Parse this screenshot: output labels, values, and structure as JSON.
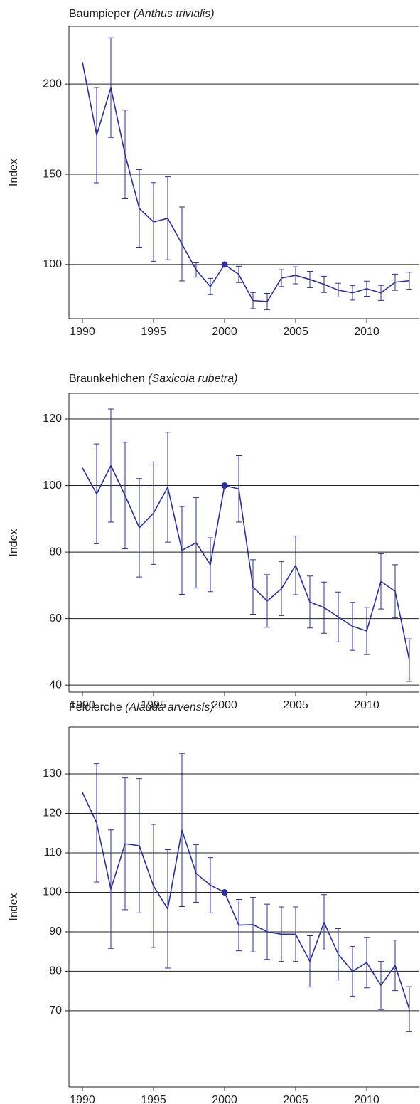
{
  "chart_data": [
    {
      "type": "line",
      "title": "Baumpieper",
      "subtitle": "(Anthus trivialis)",
      "y_label": "Index",
      "color": "#2e3192",
      "highlight": 2000,
      "grid": true,
      "x": [
        1990,
        1991,
        1992,
        1993,
        1994,
        1995,
        1996,
        1997,
        1998,
        1999,
        2000,
        2001,
        2002,
        2003,
        2004,
        2005,
        2006,
        2007,
        2008,
        2009,
        2010,
        2011,
        2012,
        2013
      ],
      "values": [
        212.2,
        171.7,
        198,
        161,
        131.1,
        123.6,
        125.6,
        111.4,
        97,
        87.8,
        100,
        94.5,
        80,
        79.5,
        92.5,
        94,
        91.7,
        89,
        85.8,
        84.3,
        86.6,
        84.3,
        90.2,
        91
      ],
      "errors": [
        null,
        26.4,
        27.6,
        24.6,
        21.5,
        21.8,
        23,
        20.5,
        4,
        4.5,
        null,
        4.5,
        4.5,
        4.5,
        4.7,
        4.7,
        4.5,
        4.5,
        3.8,
        4,
        4.2,
        4.2,
        4.5,
        4.7
      ],
      "xlim": [
        1989.05,
        2013.7
      ],
      "xticks": [
        1990,
        1995,
        2000,
        2005,
        2010
      ],
      "ylim": [
        70,
        232
      ],
      "yticks": [
        100,
        150,
        200
      ]
    },
    {
      "type": "line",
      "title": "Braunkehlchen",
      "subtitle": "(Saxicola rubetra)",
      "y_label": "Index",
      "color": "#2e3192",
      "highlight": 2000,
      "grid": true,
      "x": [
        1990,
        1991,
        1992,
        1993,
        1994,
        1995,
        1996,
        1997,
        1998,
        1999,
        2000,
        2001,
        2002,
        2003,
        2004,
        2005,
        2006,
        2007,
        2008,
        2009,
        2010,
        2011,
        2012,
        2013
      ],
      "values": [
        105.3,
        97.5,
        106,
        97,
        87.3,
        91.7,
        99.5,
        80.5,
        82.8,
        76.2,
        100,
        99,
        69.5,
        65.3,
        69,
        76,
        65,
        63.3,
        60.5,
        57.7,
        56.3,
        71.2,
        68.2,
        47.5
      ],
      "errors": [
        null,
        15,
        17,
        16,
        14.8,
        15.4,
        16.5,
        13.2,
        13.6,
        8.1,
        null,
        10,
        8.2,
        7.9,
        8.1,
        8.8,
        7.8,
        7.7,
        7.5,
        7.2,
        7.1,
        8.3,
        8,
        6.4
      ],
      "xlim": [
        1989.05,
        2013.7
      ],
      "xticks": [
        1990,
        1995,
        2000,
        2005,
        2010
      ],
      "ylim": [
        37.9,
        127.7
      ],
      "yticks": [
        40,
        60,
        80,
        100,
        120
      ]
    },
    {
      "type": "line",
      "title": "Feldlerche",
      "subtitle": "(Alauda arvensis)",
      "y_label": "Index",
      "color": "#2e3192",
      "highlight": 2000,
      "grid": true,
      "x": [
        1990,
        1991,
        1992,
        1993,
        1994,
        1995,
        1996,
        1997,
        1998,
        1999,
        2000,
        2001,
        2002,
        2003,
        2004,
        2005,
        2006,
        2007,
        2008,
        2009,
        2010,
        2011,
        2012,
        2013
      ],
      "values": [
        125.3,
        117.6,
        100.8,
        112.3,
        111.8,
        101.6,
        95.8,
        115.8,
        104.8,
        101.8,
        100,
        91.7,
        91.8,
        90,
        89.4,
        89.4,
        82.5,
        92.4,
        84.3,
        80,
        82.2,
        76.4,
        81.5,
        70.4
      ],
      "errors": [
        null,
        15,
        15,
        16.7,
        17,
        15.6,
        15,
        19.4,
        7.3,
        7,
        null,
        6.5,
        6.9,
        7,
        6.9,
        6.9,
        6.5,
        7,
        6.5,
        6.3,
        6.4,
        6.1,
        6.4,
        5.7
      ],
      "xlim": [
        1989.05,
        2013.7
      ],
      "xticks": [
        1990,
        1995,
        2000,
        2005,
        2010
      ],
      "ylim": [
        50.7,
        141.9
      ],
      "yticks": [
        70,
        80,
        90,
        100,
        110,
        120,
        130
      ]
    }
  ]
}
